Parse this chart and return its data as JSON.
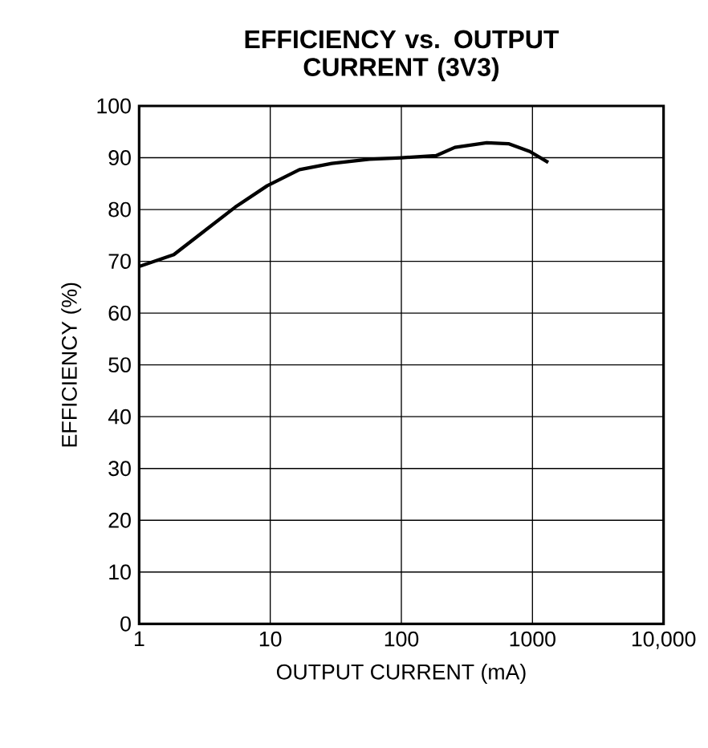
{
  "chart_data": {
    "type": "line",
    "title": "EFFICIENCY vs. OUTPUT CURRENT (3V3)",
    "xlabel": "OUTPUT CURRENT (mA)",
    "ylabel": "EFFICIENCY (%)",
    "log": "x",
    "grid": true,
    "x": [
      1,
      1.84,
      2.81,
      5.43,
      9.5,
      16.7,
      29.5,
      57,
      100,
      184,
      256,
      448,
      656,
      955,
      1320
    ],
    "series": [
      {
        "color": "#000000",
        "values": [
          69,
          71.3,
          74.9,
          80.5,
          84.6,
          87.7,
          88.9,
          89.7,
          90,
          90.4,
          92,
          92.9,
          92.7,
          91.2,
          89.1
        ]
      }
    ],
    "xlim": [
      1,
      10000
    ],
    "ylim": [
      0,
      100
    ],
    "xticks": [
      1,
      10,
      100,
      1000,
      {
        "value": 10000,
        "label": "10,000"
      }
    ],
    "yticks": [
      0,
      10,
      20,
      30,
      40,
      50,
      60,
      70,
      80,
      90,
      100
    ]
  }
}
